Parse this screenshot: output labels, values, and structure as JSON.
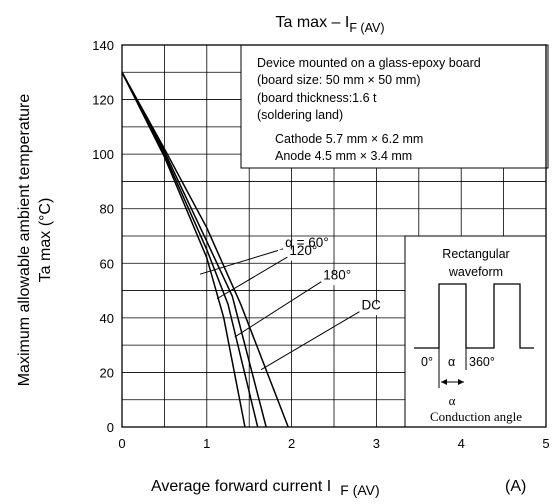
{
  "chart_data": {
    "type": "line",
    "title_main": "Ta max – I",
    "title_sub": "F (AV)",
    "xlabel_main": "Average forward current  I",
    "xlabel_sub": "F (AV)",
    "xlabel_unit": "(A)",
    "ylabel_line1": "Maximum allowable ambient temperature",
    "ylabel_line2": "Ta max   (°C)",
    "xlim": [
      0,
      5
    ],
    "ylim": [
      0,
      140
    ],
    "x_ticks": [
      "0",
      "1",
      "2",
      "3",
      "4",
      "5"
    ],
    "y_ticks": [
      "0",
      "20",
      "40",
      "60",
      "80",
      "100",
      "120",
      "140"
    ],
    "grid": true,
    "series": [
      {
        "name": "α = 60°",
        "points": [
          [
            0,
            130
          ],
          [
            0.5,
            99
          ],
          [
            1.0,
            62
          ],
          [
            1.2,
            40
          ],
          [
            1.45,
            0
          ]
        ],
        "label_at": [
          1.9,
          66
        ],
        "arrow_to": [
          0.92,
          56
        ],
        "label_box": [
          1.84,
          1.98,
          64,
          69
        ]
      },
      {
        "name": "120°",
        "points": [
          [
            0,
            130
          ],
          [
            0.5,
            100
          ],
          [
            1.0,
            65
          ],
          [
            1.25,
            45
          ],
          [
            1.6,
            0
          ]
        ],
        "label_at": [
          1.95,
          63
        ],
        "arrow_to": [
          1.12,
          47
        ],
        "label_box": [
          1.84,
          2.42,
          61,
          65
        ]
      },
      {
        "name": "180°",
        "points": [
          [
            0,
            130
          ],
          [
            0.5,
            101
          ],
          [
            1.0,
            68
          ],
          [
            1.3,
            48
          ],
          [
            1.7,
            0
          ]
        ],
        "label_at": [
          2.35,
          54
        ],
        "arrow_to": [
          1.33,
          33
        ],
        "label_box": [
          2.28,
          2.89,
          52,
          56
        ]
      },
      {
        "name": "DC",
        "points": [
          [
            0,
            130
          ],
          [
            0.5,
            102
          ],
          [
            1.0,
            73
          ],
          [
            1.4,
            45
          ],
          [
            1.96,
            0
          ]
        ],
        "label_at": [
          2.8,
          43
        ],
        "arrow_to": [
          1.64,
          21
        ],
        "label_box": [
          2.7,
          3.15,
          41,
          45
        ]
      }
    ],
    "annotations": {
      "mounting": [
        "Device mounted on a glass-epoxy board",
        "(board size: 50 mm × 50 mm)",
        "(board thickness:1.6 t",
        "(soldering land)",
        "Cathode 5.7 mm × 6.2 mm",
        "Anode   4.5 mm × 3.4 mm"
      ],
      "waveform": {
        "title1": "Rectangular",
        "title2": "waveform",
        "label_0": "0°",
        "label_alpha": "α",
        "label_360": "360°",
        "conduction_alpha": "α",
        "conduction_text": "Conduction angle"
      }
    }
  }
}
